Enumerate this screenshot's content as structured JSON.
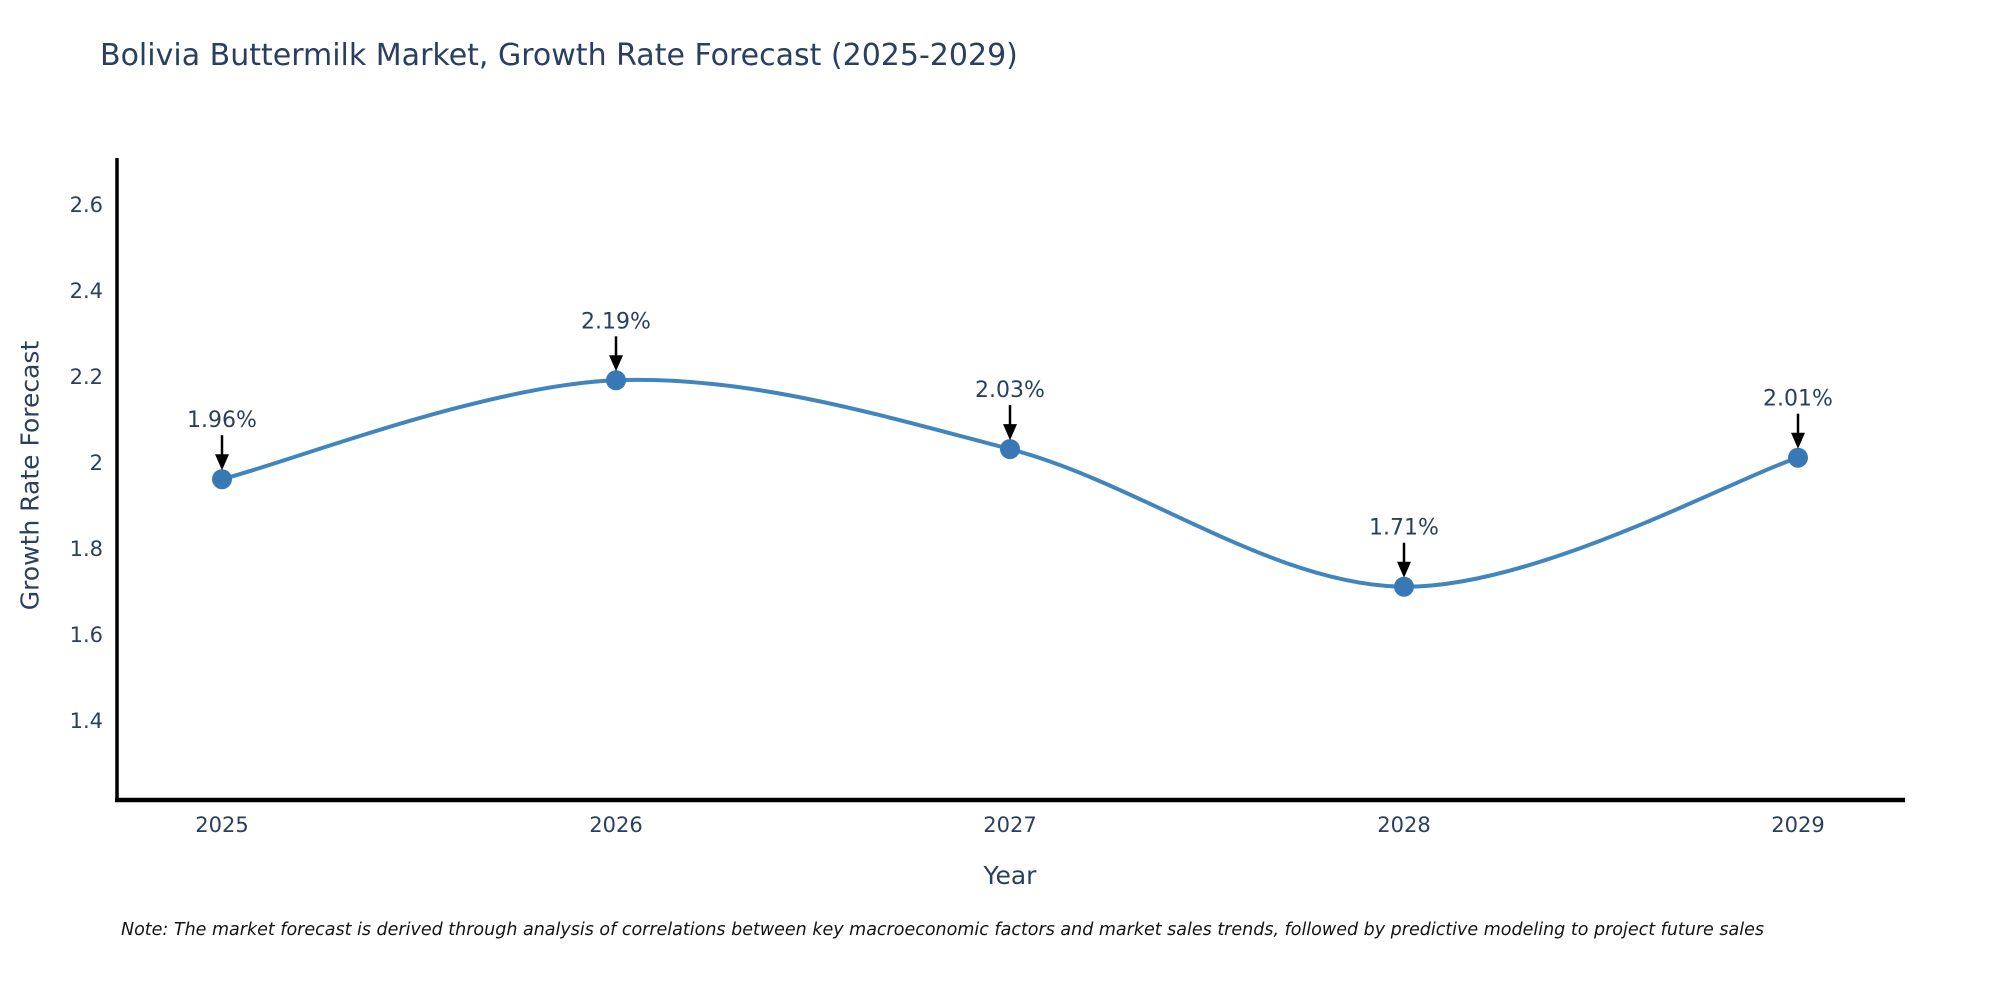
{
  "title": "Bolivia Buttermilk Market, Growth Rate Forecast (2025-2029)",
  "note": "Note: The market forecast is derived through analysis of correlations between key macroeconomic factors and market sales trends, followed by predictive modeling to project future sales",
  "chart_data": {
    "type": "line",
    "title": "Bolivia Buttermilk Market, Growth Rate Forecast (2025-2029)",
    "xlabel": "Year",
    "ylabel": "Growth Rate Forecast",
    "x": [
      "2025",
      "2026",
      "2027",
      "2028",
      "2029"
    ],
    "values": [
      1.96,
      2.19,
      2.03,
      1.71,
      2.01
    ],
    "point_labels": [
      "1.96%",
      "2.19%",
      "2.03%",
      "1.71%",
      "2.01%"
    ],
    "ytick_values": [
      2.6,
      2.4,
      2.2,
      2.0,
      1.8,
      1.6,
      1.4
    ],
    "ytick_labels": [
      "2.6",
      "2.4",
      "2.2",
      "2",
      "1.8",
      "1.6",
      "1.4"
    ],
    "ylim": [
      1.2,
      2.72
    ],
    "grid": false,
    "legend": "none",
    "annotation_style": "value labels with downward arrows above each marker",
    "colors": {
      "line": "#4285bd",
      "marker": "#3878b4",
      "text": "#2a3f5f",
      "axis": "#000000",
      "annotation_arrow": "#000000"
    }
  }
}
